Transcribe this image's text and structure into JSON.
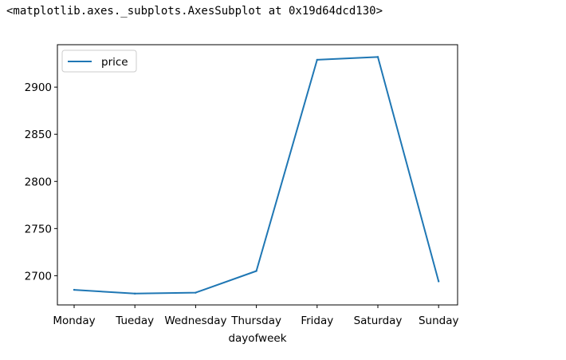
{
  "output_repr": "<matplotlib.axes._subplots.AxesSubplot at 0x19d64dcd130>",
  "colors": {
    "series": "#1f77b4",
    "axes": "#000000",
    "legend_border": "#cccccc"
  },
  "chart_data": {
    "type": "line",
    "title": "",
    "xlabel": "dayofweek",
    "ylabel": "",
    "categories": [
      "Monday",
      "Tueday",
      "Wednesday",
      "Thursday",
      "Friday",
      "Saturday",
      "Sunday"
    ],
    "series": [
      {
        "name": "price",
        "values": [
          2685,
          2681,
          2682,
          2705,
          2929,
          2932,
          2694
        ]
      }
    ],
    "ylim": [
      2669,
      2945
    ],
    "yticks": [
      2700,
      2750,
      2800,
      2850,
      2900
    ],
    "grid": false,
    "legend_position": "upper left"
  }
}
